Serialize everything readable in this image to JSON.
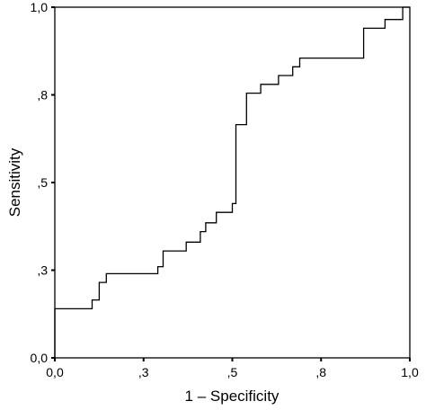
{
  "chart_data": {
    "type": "line",
    "title": "",
    "xlabel": "1 – Specificity",
    "ylabel": "Sensitivity",
    "xlim": [
      0,
      1
    ],
    "ylim": [
      0,
      1
    ],
    "grid": false,
    "legend": "none",
    "x_ticks": [
      {
        "value": 0.0,
        "label": "0,0"
      },
      {
        "value": 0.25,
        "label": ",3"
      },
      {
        "value": 0.5,
        "label": ",5"
      },
      {
        "value": 0.75,
        "label": ",8"
      },
      {
        "value": 1.0,
        "label": "1,0"
      }
    ],
    "y_ticks": [
      {
        "value": 0.0,
        "label": "0,0"
      },
      {
        "value": 0.25,
        "label": ",3"
      },
      {
        "value": 0.5,
        "label": ",5"
      },
      {
        "value": 0.75,
        "label": ",8"
      },
      {
        "value": 1.0,
        "label": "1,0"
      }
    ],
    "series": [
      {
        "x": [
          0.0,
          0.0,
          0.105,
          0.105,
          0.125,
          0.125,
          0.145,
          0.145,
          0.29,
          0.29,
          0.305,
          0.305,
          0.37,
          0.37,
          0.41,
          0.41,
          0.425,
          0.425,
          0.455,
          0.455,
          0.5,
          0.5,
          0.51,
          0.51,
          0.54,
          0.54,
          0.58,
          0.58,
          0.63,
          0.63,
          0.67,
          0.67,
          0.69,
          0.69,
          0.87,
          0.87,
          0.93,
          0.93,
          0.98,
          0.98,
          1.0
        ],
        "y": [
          0.0,
          0.14,
          0.14,
          0.165,
          0.165,
          0.215,
          0.215,
          0.24,
          0.24,
          0.26,
          0.26,
          0.305,
          0.305,
          0.33,
          0.33,
          0.36,
          0.36,
          0.385,
          0.385,
          0.415,
          0.415,
          0.44,
          0.44,
          0.665,
          0.665,
          0.755,
          0.755,
          0.78,
          0.78,
          0.805,
          0.805,
          0.83,
          0.83,
          0.855,
          0.855,
          0.94,
          0.94,
          0.965,
          0.965,
          1.0,
          1.0
        ]
      }
    ]
  }
}
